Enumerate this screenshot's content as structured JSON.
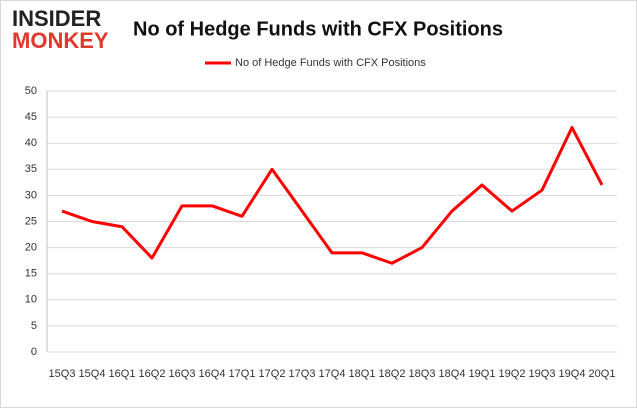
{
  "logo": {
    "line1": "INSIDER",
    "line2": "MONKEY"
  },
  "chart_data": {
    "type": "line",
    "title": "No of Hedge Funds with CFX Positions",
    "categories": [
      "15Q3",
      "15Q4",
      "16Q1",
      "16Q2",
      "16Q3",
      "16Q4",
      "17Q1",
      "17Q2",
      "17Q3",
      "17Q4",
      "18Q1",
      "18Q2",
      "18Q3",
      "18Q4",
      "19Q1",
      "19Q2",
      "19Q3",
      "19Q4",
      "20Q1"
    ],
    "series": [
      {
        "name": "No of Hedge Funds with CFX Positions",
        "color": "#ff0000",
        "values": [
          27,
          25,
          24,
          18,
          28,
          28,
          26,
          35,
          27,
          19,
          19,
          17,
          20,
          27,
          32,
          27,
          31,
          43,
          32
        ]
      }
    ],
    "ylim": [
      0,
      50
    ],
    "yticks": [
      0,
      5,
      10,
      15,
      20,
      25,
      30,
      35,
      40,
      45,
      50
    ],
    "grid": true,
    "legend": "top"
  }
}
